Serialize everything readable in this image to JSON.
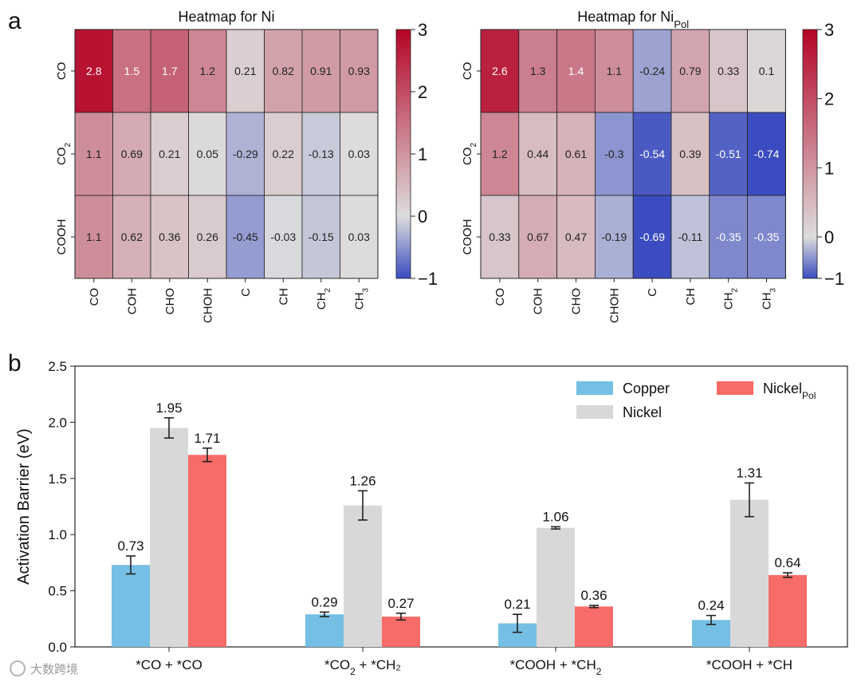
{
  "panel_labels": {
    "a": "a",
    "b": "b"
  },
  "colormap": {
    "low": "#3b4cc0",
    "mid": "#dddddd",
    "high": "#b40426"
  },
  "chart_data": [
    {
      "type": "heatmap",
      "title": "Heatmap for Ni",
      "title_sub": "",
      "rows": [
        {
          "base": "CO",
          "sub": "",
          "tail": ""
        },
        {
          "base": "CO",
          "sub": "2",
          "tail": ""
        },
        {
          "base": "COOH",
          "sub": "",
          "tail": ""
        }
      ],
      "cols": [
        {
          "base": "CO",
          "sub": "",
          "tail": ""
        },
        {
          "base": "COH",
          "sub": "",
          "tail": ""
        },
        {
          "base": "CHO",
          "sub": "",
          "tail": ""
        },
        {
          "base": "CHOH",
          "sub": "",
          "tail": ""
        },
        {
          "base": "C",
          "sub": "",
          "tail": ""
        },
        {
          "base": "CH",
          "sub": "",
          "tail": ""
        },
        {
          "base": "CH",
          "sub": "2",
          "tail": ""
        },
        {
          "base": "CH",
          "sub": "3",
          "tail": ""
        }
      ],
      "values": [
        [
          2.8,
          1.5,
          1.7,
          1.2,
          0.21,
          0.82,
          0.91,
          0.93
        ],
        [
          1.1,
          0.69,
          0.21,
          0.05,
          -0.29,
          0.22,
          -0.13,
          0.03
        ],
        [
          1.1,
          0.62,
          0.36,
          0.26,
          -0.45,
          -0.03,
          -0.15,
          0.03
        ]
      ],
      "labels": [
        [
          "2.8",
          "1.5",
          "1.7",
          "1.2",
          "0.21",
          "0.82",
          "0.91",
          "0.93"
        ],
        [
          "1.1",
          "0.69",
          "0.21",
          "0.05",
          "-0.29",
          "0.22",
          "-0.13",
          "0.03"
        ],
        [
          "1.1",
          "0.62",
          "0.36",
          "0.26",
          "-0.45",
          "-0.03",
          "-0.15",
          "0.03"
        ]
      ],
      "vmin": -1,
      "vmax": 3,
      "colorbar_ticks": [
        {
          "v": 3,
          "t": "3"
        },
        {
          "v": 2,
          "t": "2"
        },
        {
          "v": 1,
          "t": "1"
        },
        {
          "v": 0,
          "t": "0"
        },
        {
          "v": -1,
          "t": "−1"
        }
      ]
    },
    {
      "type": "heatmap",
      "title": "Heatmap for Ni",
      "title_sub": "Pol",
      "rows": [
        {
          "base": "CO",
          "sub": "",
          "tail": ""
        },
        {
          "base": "CO",
          "sub": "2",
          "tail": ""
        },
        {
          "base": "COOH",
          "sub": "",
          "tail": ""
        }
      ],
      "cols": [
        {
          "base": "CO",
          "sub": "",
          "tail": ""
        },
        {
          "base": "COH",
          "sub": "",
          "tail": ""
        },
        {
          "base": "CHO",
          "sub": "",
          "tail": ""
        },
        {
          "base": "CHOH",
          "sub": "",
          "tail": ""
        },
        {
          "base": "C",
          "sub": "",
          "tail": ""
        },
        {
          "base": "CH",
          "sub": "",
          "tail": ""
        },
        {
          "base": "CH",
          "sub": "2",
          "tail": ""
        },
        {
          "base": "CH",
          "sub": "3",
          "tail": ""
        }
      ],
      "values": [
        [
          2.6,
          1.3,
          1.4,
          1.1,
          -0.24,
          0.79,
          0.33,
          0.1
        ],
        [
          1.2,
          0.44,
          0.61,
          -0.3,
          -0.54,
          0.39,
          -0.51,
          -0.74
        ],
        [
          0.33,
          0.67,
          0.47,
          -0.19,
          -0.69,
          -0.11,
          -0.35,
          -0.35
        ]
      ],
      "labels": [
        [
          "2.6",
          "1.3",
          "1.4",
          "1.1",
          "-0.24",
          "0.79",
          "0.33",
          "0.1"
        ],
        [
          "1.2",
          "0.44",
          "0.61",
          "-0.3",
          "-0.54",
          "0.39",
          "-0.51",
          "-0.74"
        ],
        [
          "0.33",
          "0.67",
          "0.47",
          "-0.19",
          "-0.69",
          "-0.11",
          "-0.35",
          "-0.35"
        ]
      ],
      "vmin": -0.6,
      "vmax": 3,
      "colorbar_ticks": [
        {
          "v": 3,
          "t": "3"
        },
        {
          "v": 2,
          "t": "2"
        },
        {
          "v": 1,
          "t": "1"
        },
        {
          "v": 0,
          "t": "0"
        },
        {
          "v": -0.6,
          "t": "−1"
        }
      ]
    },
    {
      "type": "bar",
      "ylabel": "Activation Barrier (eV)",
      "ylim": [
        0,
        2.5
      ],
      "yticks": [
        "0.0",
        "0.5",
        "1.0",
        "1.5",
        "2.0",
        "2.5"
      ],
      "categories": [
        {
          "base": "*CO + *CO",
          "sub": "",
          "tail": ""
        },
        {
          "base": "*CO",
          "sub": "2",
          "tail": " + *CH₂"
        },
        {
          "base": "*COOH + *CH",
          "sub": "2",
          "tail": ""
        },
        {
          "base": "*COOH + *CH",
          "sub": "",
          "tail": ""
        }
      ],
      "series": [
        {
          "name": "Copper",
          "name_sub": "",
          "color": "#74bfe3",
          "values": [
            0.73,
            0.29,
            0.21,
            0.24
          ],
          "errors": [
            0.08,
            0.02,
            0.08,
            0.04
          ],
          "labels": [
            "0.73",
            "0.29",
            "0.21",
            "0.24"
          ]
        },
        {
          "name": "Nickel",
          "name_sub": "",
          "color": "#d8d8d8",
          "values": [
            1.95,
            1.26,
            1.06,
            1.31
          ],
          "errors": [
            0.09,
            0.13,
            0.01,
            0.15
          ],
          "labels": [
            "1.95",
            "1.26",
            "1.06",
            "1.31"
          ]
        },
        {
          "name": "Nickel",
          "name_sub": "Pol",
          "color": "#f76b68",
          "values": [
            1.71,
            0.27,
            0.36,
            0.64
          ],
          "errors": [
            0.06,
            0.03,
            0.01,
            0.02
          ],
          "labels": [
            "1.71",
            "0.27",
            "0.36",
            "0.64"
          ]
        }
      ],
      "legend_position": "top-right"
    }
  ],
  "watermark": "大数跨境"
}
